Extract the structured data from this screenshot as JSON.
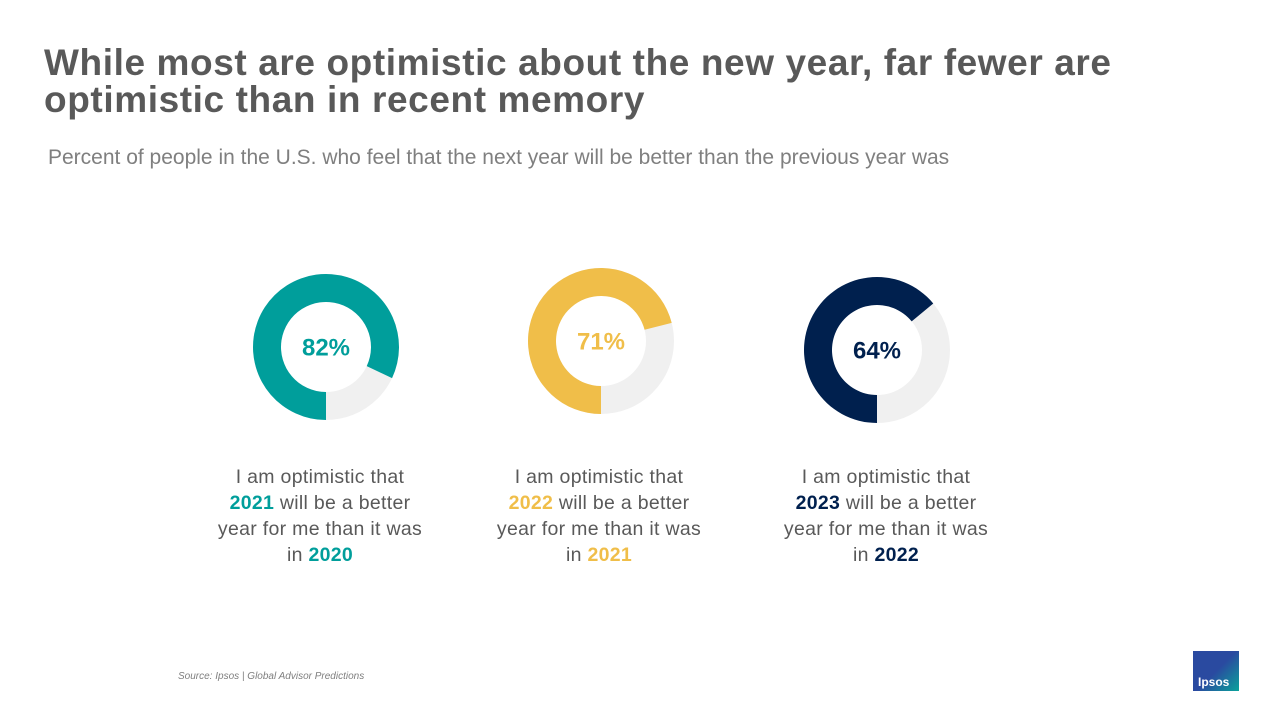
{
  "title": "While most are optimistic about the new year, far fewer are optimistic than in recent memory",
  "subtitle": "Percent of people in the U.S. who feel that the next year will be better than the previous year was",
  "source": "Source: Ipsos | Global Advisor Predictions",
  "logo": "Ipsos",
  "chart_data": [
    {
      "type": "donut",
      "values": [
        82
      ],
      "value_labels": [
        "82%"
      ],
      "color": "#009e9b",
      "caption": {
        "lead": "I am optimistic that",
        "year": "2021",
        "middle": "will be a better year for me than it was in",
        "prev_year": "2020"
      }
    },
    {
      "type": "donut",
      "values": [
        71
      ],
      "value_labels": [
        "71%"
      ],
      "color": "#f0be49",
      "caption": {
        "lead": "I am optimistic that",
        "year": "2022",
        "middle": "will be a better year for me than it was in",
        "prev_year": "2021"
      }
    },
    {
      "type": "donut",
      "values": [
        64
      ],
      "value_labels": [
        "64%"
      ],
      "color": "#00204e",
      "caption": {
        "lead": "I am optimistic that",
        "year": "2023",
        "middle": "will be a better year for me than it was in",
        "prev_year": "2022"
      }
    }
  ]
}
